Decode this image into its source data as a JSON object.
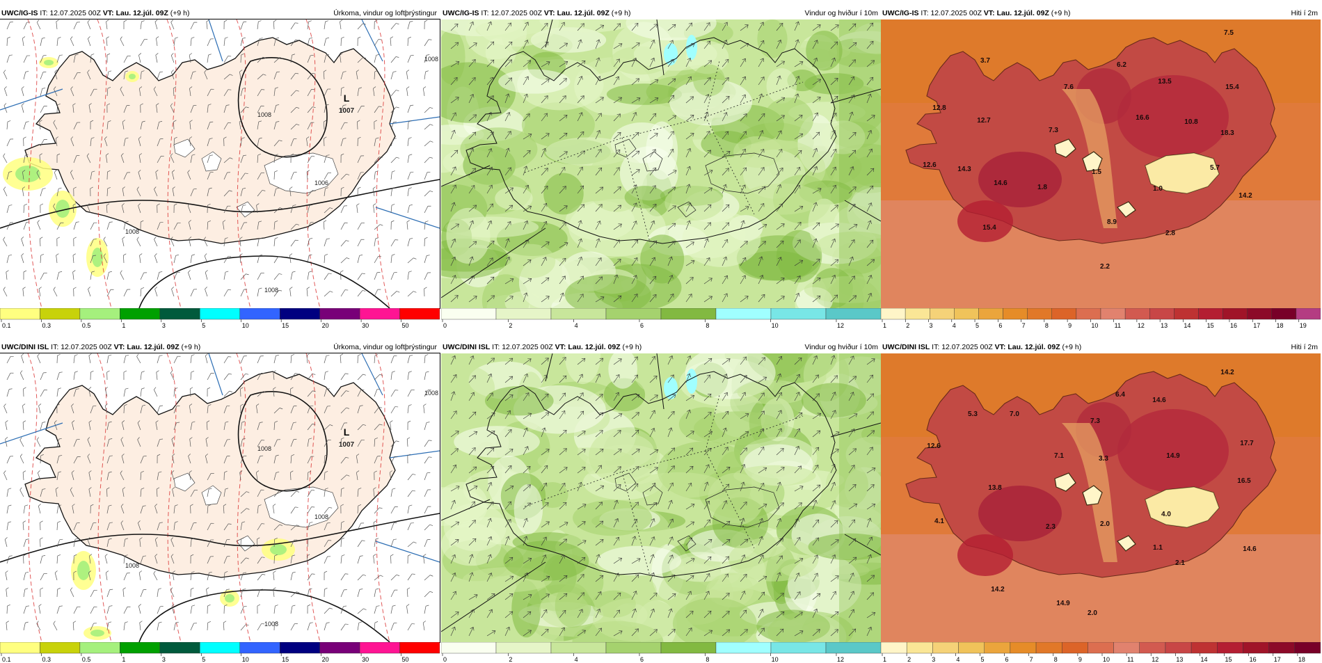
{
  "panels": [
    {
      "id": "r1c1",
      "model": "UWC/IG-IS",
      "it_label": "IT:",
      "it_value": "12.07.2025 00Z",
      "vt_label": "VT:",
      "vt_value": "Lau. 12.júl. 09Z",
      "lead": "(+9 h)",
      "title": "Úrkoma, vindur og loftþrýstingur",
      "variable": "precip",
      "pressure_labels": [
        "1007",
        "1008",
        "1006",
        "1008",
        "1008",
        "1008"
      ],
      "low_label": "L",
      "legend": {
        "colors": [
          "#ffff80",
          "#c8d20a",
          "#a5f07d",
          "#00a000",
          "#005a3c",
          "#00ffff",
          "#3264ff",
          "#000080",
          "#780078",
          "#ff1493",
          "#ff0000"
        ],
        "ticks": [
          "0.1",
          "0.3",
          "0.5",
          "1",
          "3",
          "5",
          "10",
          "15",
          "20",
          "30",
          "50"
        ]
      }
    },
    {
      "id": "r1c2",
      "model": "UWC/IG-IS",
      "it_label": "IT:",
      "it_value": "12.07.2025 00Z",
      "vt_label": "VT:",
      "vt_value": "Lau. 12.júl. 09Z",
      "lead": "(+9 h)",
      "title": "Vindur og hviður í 10m",
      "variable": "wind",
      "legend": {
        "colors": [
          "#fafff0",
          "#e6f5c8",
          "#c8e69b",
          "#a5d26e",
          "#82b941",
          "#a0ffff",
          "#78e6e6",
          "#5ac8c8"
        ],
        "ticks": [
          "0",
          "2",
          "4",
          "6",
          "8",
          "10",
          "12"
        ]
      }
    },
    {
      "id": "r1c3",
      "model": "UWC/IG-IS",
      "it_label": "IT:",
      "it_value": "12.07.2025 00Z",
      "vt_label": "VT:",
      "vt_value": "Lau. 12.júl. 09Z",
      "lead": "(+9 h)",
      "title": "Hiti í 2m",
      "variable": "temperature",
      "temp_labels": [
        "7.5",
        "3.7",
        "6.2",
        "13.5",
        "15.4",
        "7.6",
        "12.8",
        "12.7",
        "16.6",
        "10.8",
        "7.3",
        "18.3",
        "12.6",
        "14.3",
        "14.6",
        "1.8",
        "1.5",
        "5.7",
        "1.0",
        "14.2",
        "8.9",
        "15.4",
        "2.8",
        "2.2"
      ],
      "legend": {
        "colors": [
          "#fff5c8",
          "#fae696",
          "#f5d278",
          "#f0c35a",
          "#eba53c",
          "#e68c28",
          "#e17828",
          "#dc6428",
          "#dc6e50",
          "#e1826e",
          "#d25a50",
          "#c84646",
          "#be3232",
          "#b41e32",
          "#a01428",
          "#8c0a28",
          "#780028",
          "#b43c82"
        ],
        "ticks": [
          "1",
          "2",
          "3",
          "4",
          "5",
          "6",
          "7",
          "8",
          "9",
          "10",
          "11",
          "12",
          "13",
          "14",
          "15",
          "16",
          "17",
          "18",
          "19"
        ]
      }
    },
    {
      "id": "r2c1",
      "model": "UWC/DINI ISL",
      "it_label": "IT:",
      "it_value": "12.07.2025 00Z",
      "vt_label": "VT:",
      "vt_value": "Lau. 12.júl. 09Z",
      "lead": "(+9 h)",
      "title": "Úrkoma, vindur og loftþrýstingur",
      "variable": "precip",
      "pressure_labels": [
        "1007",
        "1008",
        "1008",
        "1008",
        "1008",
        "1008"
      ],
      "low_label": "L",
      "legend": {
        "colors": [
          "#ffff80",
          "#c8d20a",
          "#a5f07d",
          "#00a000",
          "#005a3c",
          "#00ffff",
          "#3264ff",
          "#000080",
          "#780078",
          "#ff1493",
          "#ff0000"
        ],
        "ticks": [
          "0.1",
          "0.3",
          "0.5",
          "1",
          "3",
          "5",
          "10",
          "15",
          "20",
          "30",
          "50"
        ]
      }
    },
    {
      "id": "r2c2",
      "model": "UWC/DINI ISL",
      "it_label": "IT:",
      "it_value": "12.07.2025 00Z",
      "vt_label": "VT:",
      "vt_value": "Lau. 12.júl. 09Z",
      "lead": "(+9 h)",
      "title": "Vindur og hviður í 10m",
      "variable": "wind",
      "legend": {
        "colors": [
          "#fafff0",
          "#e6f5c8",
          "#c8e69b",
          "#a5d26e",
          "#82b941",
          "#a0ffff",
          "#78e6e6",
          "#5ac8c8"
        ],
        "ticks": [
          "0",
          "2",
          "4",
          "6",
          "8",
          "10",
          "12"
        ]
      }
    },
    {
      "id": "r2c3",
      "model": "UWC/DINI ISL",
      "it_label": "IT:",
      "it_value": "12.07.2025 00Z",
      "vt_label": "VT:",
      "vt_value": "Lau. 12.júl. 09Z",
      "lead": "(+9 h)",
      "title": "Hiti í 2m",
      "variable": "temperature",
      "temp_labels": [
        "14.2",
        "6.4",
        "14.6",
        "5.3",
        "7.0",
        "7.3",
        "17.7",
        "12.6",
        "7.1",
        "3.3",
        "14.9",
        "16.5",
        "13.8",
        "4.0",
        "4.1",
        "2.3",
        "2.0",
        "1.1",
        "14.6",
        "2.1",
        "14.2",
        "14.9",
        "2.0"
      ],
      "legend": {
        "colors": [
          "#fff5c8",
          "#fae696",
          "#f5d278",
          "#f0c35a",
          "#eba53c",
          "#e68c28",
          "#e17828",
          "#dc6428",
          "#dc6e50",
          "#e1826e",
          "#d25a50",
          "#c84646",
          "#be3232",
          "#b41e32",
          "#a01428",
          "#8c0a28",
          "#780028"
        ],
        "ticks": [
          "1",
          "2",
          "3",
          "4",
          "5",
          "6",
          "7",
          "8",
          "9",
          "10",
          "11",
          "12",
          "13",
          "14",
          "15",
          "16",
          "17",
          "18"
        ]
      }
    }
  ]
}
